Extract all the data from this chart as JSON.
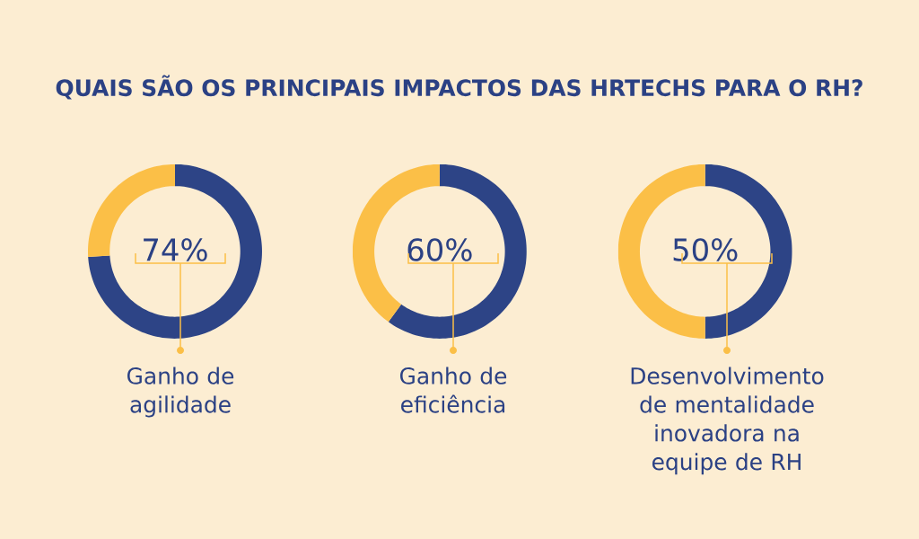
{
  "chart_data": [
    {
      "type": "donut",
      "title": "QUAIS SÃO OS PRINCIPAIS IMPACTOS DAS HRTECHS PARA O RH?",
      "categories": [
        "Ganho de agilidade",
        null
      ],
      "values": [
        74,
        26
      ],
      "colors": [
        "#2d4486",
        "#fbbf47"
      ],
      "annotations": [
        "74%"
      ]
    },
    {
      "type": "donut",
      "categories": [
        "Ganho de eficiência",
        null
      ],
      "values": [
        60,
        40
      ],
      "colors": [
        "#2d4486",
        "#fbbf47"
      ],
      "annotations": [
        "60%"
      ]
    },
    {
      "type": "donut",
      "categories": [
        "Desenvolvimento de mentalidade inovadora na equipe de RH",
        null
      ],
      "values": [
        50,
        50
      ],
      "colors": [
        "#2d4486",
        "#fbbf47"
      ],
      "annotations": [
        "50%"
      ]
    }
  ]
}
